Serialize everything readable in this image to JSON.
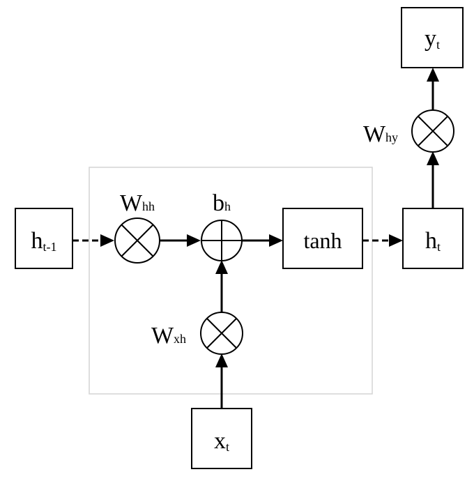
{
  "nodes": {
    "h_prev": {
      "base": "h",
      "sub": "t-1"
    },
    "h_t": {
      "base": "h",
      "sub": "t"
    },
    "y_t": {
      "base": "y",
      "sub": "t"
    },
    "x_t": {
      "base": "x",
      "sub": "t"
    },
    "tanh": {
      "label": "tanh"
    }
  },
  "weights": {
    "w_hh": {
      "base": "W",
      "sub": "hh"
    },
    "b_h": {
      "base": "b",
      "sub": "h"
    },
    "w_xh": {
      "base": "W",
      "sub": "xh"
    },
    "w_hy": {
      "base": "W",
      "sub": "hy"
    }
  }
}
